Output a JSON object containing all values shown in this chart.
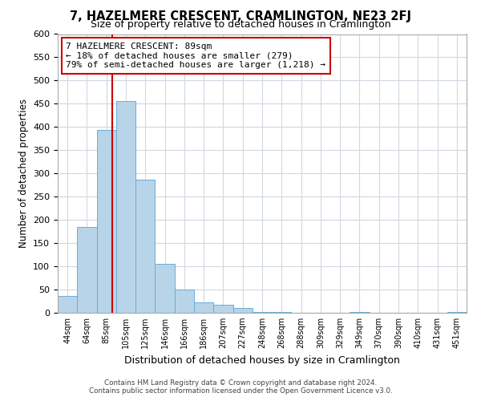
{
  "title": "7, HAZELMERE CRESCENT, CRAMLINGTON, NE23 2FJ",
  "subtitle": "Size of property relative to detached houses in Cramlington",
  "xlabel": "Distribution of detached houses by size in Cramlington",
  "ylabel": "Number of detached properties",
  "bar_labels": [
    "44sqm",
    "64sqm",
    "85sqm",
    "105sqm",
    "125sqm",
    "146sqm",
    "166sqm",
    "186sqm",
    "207sqm",
    "227sqm",
    "248sqm",
    "268sqm",
    "288sqm",
    "309sqm",
    "329sqm",
    "349sqm",
    "370sqm",
    "390sqm",
    "410sqm",
    "431sqm",
    "451sqm"
  ],
  "bar_values": [
    37,
    185,
    393,
    456,
    287,
    105,
    50,
    22,
    18,
    10,
    2,
    1,
    0,
    0,
    0,
    1,
    0,
    0,
    0,
    0,
    1
  ],
  "bar_color": "#b8d4e8",
  "bar_edge_color": "#6aaed6",
  "vline_color": "#cc0000",
  "annotation_text": "7 HAZELMERE CRESCENT: 89sqm\n← 18% of detached houses are smaller (279)\n79% of semi-detached houses are larger (1,218) →",
  "annotation_box_edge": "#cc0000",
  "ylim": [
    0,
    600
  ],
  "yticks": [
    0,
    50,
    100,
    150,
    200,
    250,
    300,
    350,
    400,
    450,
    500,
    550,
    600
  ],
  "footer_line1": "Contains HM Land Registry data © Crown copyright and database right 2024.",
  "footer_line2": "Contains public sector information licensed under the Open Government Licence v3.0.",
  "background_color": "#ffffff",
  "grid_color": "#d0d8e0"
}
